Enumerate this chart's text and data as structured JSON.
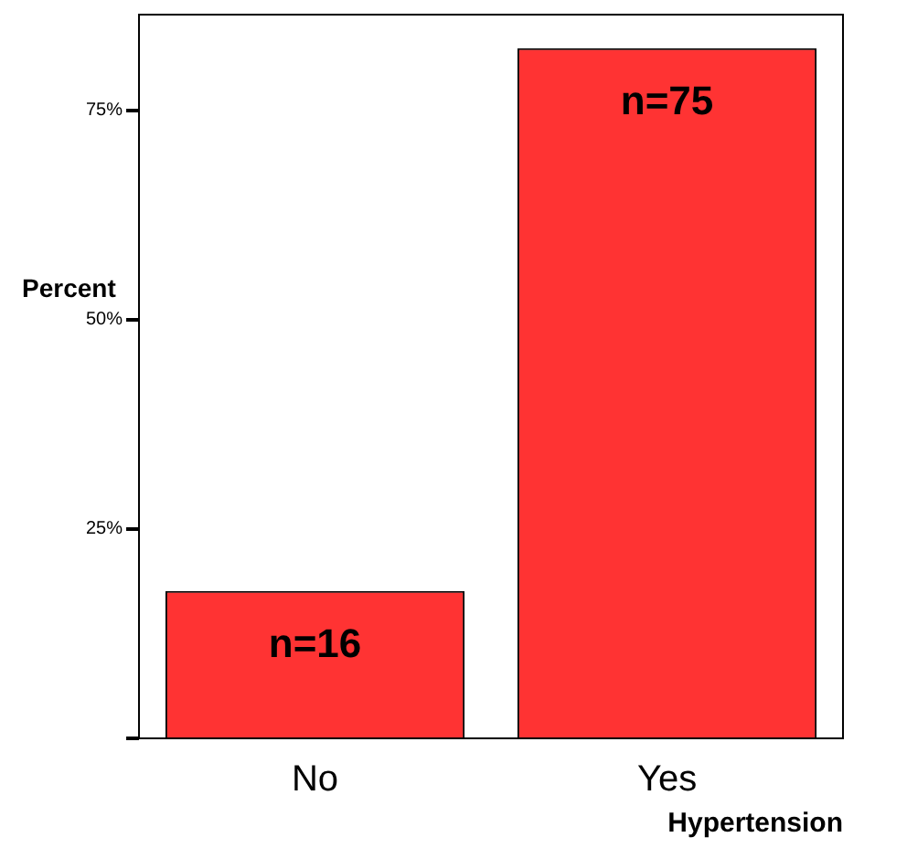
{
  "chart_data": {
    "type": "bar",
    "categories": [
      "No",
      "Yes"
    ],
    "values": [
      17.6,
      82.4
    ],
    "color": "#ff3333",
    "ylabel": "Percent",
    "xlabel": "Hypertension",
    "ylim": [
      0,
      86.4
    ],
    "yticks": [
      {
        "value": 0,
        "label": null
      },
      {
        "value": 25,
        "label": "25%"
      },
      {
        "value": 50,
        "label": "50%"
      },
      {
        "value": 75,
        "label": "75%"
      }
    ],
    "annotations": [
      "n=16",
      "n=75"
    ],
    "grid": false,
    "legend": false
  }
}
